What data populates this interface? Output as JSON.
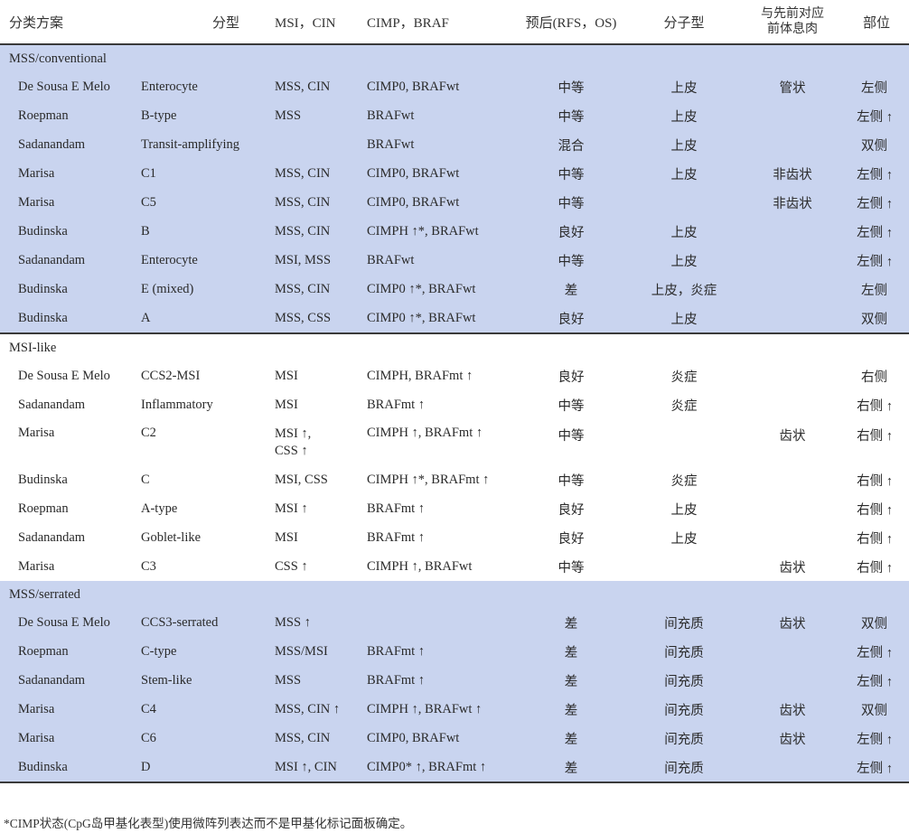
{
  "table": {
    "headers": {
      "scheme": "分类方案",
      "subtype": "分型",
      "msi_cin": "MSI，CIN",
      "cimp_braf": "CIMP，BRAF",
      "prognosis": "预后(RFS，OS)",
      "molecular": "分子型",
      "polyp_line1": "与先前对应",
      "polyp_line2": "前体息肉",
      "location": "部位"
    },
    "groups": [
      {
        "label": "MSS/conventional",
        "background": "#c9d4ef",
        "rows": [
          {
            "scheme": "De Sousa E Melo",
            "subtype": "Enterocyte",
            "msi_cin": "MSS, CIN",
            "msi_cin_2": "",
            "cimp_braf": "CIMP0, BRAFwt",
            "prognosis": "中等",
            "molecular": "上皮",
            "polyp": "管状",
            "location": "左侧"
          },
          {
            "scheme": "Roepman",
            "subtype": "B-type",
            "msi_cin": "MSS",
            "msi_cin_2": "",
            "cimp_braf": "BRAFwt",
            "prognosis": "中等",
            "molecular": "上皮",
            "polyp": "",
            "location": "左侧 ↑"
          },
          {
            "scheme": "Sadanandam",
            "subtype": "Transit-amplifying",
            "msi_cin": "",
            "msi_cin_2": "",
            "cimp_braf": "BRAFwt",
            "prognosis": "混合",
            "molecular": "上皮",
            "polyp": "",
            "location": "双侧"
          },
          {
            "scheme": "Marisa",
            "subtype": "C1",
            "msi_cin": "MSS, CIN",
            "msi_cin_2": "",
            "cimp_braf": "CIMP0, BRAFwt",
            "prognosis": "中等",
            "molecular": "上皮",
            "polyp": "非齿状",
            "location": "左侧 ↑"
          },
          {
            "scheme": "Marisa",
            "subtype": "C5",
            "msi_cin": "MSS, CIN",
            "msi_cin_2": "",
            "cimp_braf": "CIMP0, BRAFwt",
            "prognosis": "中等",
            "molecular": "",
            "polyp": "非齿状",
            "location": "左侧 ↑"
          },
          {
            "scheme": "Budinska",
            "subtype": "B",
            "msi_cin": "MSS, CIN",
            "msi_cin_2": "",
            "cimp_braf": "CIMPH ↑*, BRAFwt",
            "prognosis": "良好",
            "molecular": "上皮",
            "polyp": "",
            "location": "左侧 ↑"
          },
          {
            "scheme": "Sadanandam",
            "subtype": "Enterocyte",
            "msi_cin": "MSI, MSS",
            "msi_cin_2": "",
            "cimp_braf": "BRAFwt",
            "prognosis": "中等",
            "molecular": "上皮",
            "polyp": "",
            "location": "左侧 ↑"
          },
          {
            "scheme": "Budinska",
            "subtype": "E (mixed)",
            "msi_cin": "MSS, CIN",
            "msi_cin_2": "",
            "cimp_braf": "CIMP0 ↑*, BRAFwt",
            "prognosis": "差",
            "molecular": "上皮，炎症",
            "polyp": "",
            "location": "左侧"
          },
          {
            "scheme": "Budinska",
            "subtype": "A",
            "msi_cin": "MSS, CSS",
            "msi_cin_2": "",
            "cimp_braf": "CIMP0 ↑*, BRAFwt",
            "prognosis": "良好",
            "molecular": "上皮",
            "polyp": "",
            "location": "双侧"
          }
        ]
      },
      {
        "label": "MSI-like",
        "background": "#ffffff",
        "rows": [
          {
            "scheme": "De Sousa E Melo",
            "subtype": "CCS2-MSI",
            "msi_cin": "MSI",
            "msi_cin_2": "",
            "cimp_braf": "CIMPH, BRAFmt ↑",
            "prognosis": "良好",
            "molecular": "炎症",
            "polyp": "",
            "location": "右侧"
          },
          {
            "scheme": "Sadanandam",
            "subtype": "Inflammatory",
            "msi_cin": "MSI",
            "msi_cin_2": "",
            "cimp_braf": "BRAFmt ↑",
            "prognosis": "中等",
            "molecular": "炎症",
            "polyp": "",
            "location": "右侧 ↑"
          },
          {
            "scheme": "Marisa",
            "subtype": "C2",
            "msi_cin": "MSI ↑,",
            "msi_cin_2": "CSS ↑",
            "cimp_braf": "CIMPH ↑, BRAFmt ↑",
            "prognosis": "中等",
            "molecular": "",
            "polyp": "齿状",
            "location": "右侧 ↑"
          },
          {
            "scheme": "Budinska",
            "subtype": "C",
            "msi_cin": "MSI, CSS",
            "msi_cin_2": "",
            "cimp_braf": "CIMPH ↑*, BRAFmt ↑",
            "prognosis": "中等",
            "molecular": "炎症",
            "polyp": "",
            "location": "右侧 ↑"
          },
          {
            "scheme": "Roepman",
            "subtype": "A-type",
            "msi_cin": "MSI ↑",
            "msi_cin_2": "",
            "cimp_braf": "BRAFmt ↑",
            "prognosis": "良好",
            "molecular": "上皮",
            "polyp": "",
            "location": "右侧 ↑"
          },
          {
            "scheme": "Sadanandam",
            "subtype": "Goblet-like",
            "msi_cin": "MSI",
            "msi_cin_2": "",
            "cimp_braf": "BRAFmt ↑",
            "prognosis": "良好",
            "molecular": "上皮",
            "polyp": "",
            "location": "右侧 ↑"
          },
          {
            "scheme": "Marisa",
            "subtype": "C3",
            "msi_cin": "CSS ↑",
            "msi_cin_2": "",
            "cimp_braf": "CIMPH ↑, BRAFwt",
            "prognosis": "中等",
            "molecular": "",
            "polyp": "齿状",
            "location": "右侧 ↑"
          }
        ]
      },
      {
        "label": "MSS/serrated",
        "background": "#c9d4ef",
        "rows": [
          {
            "scheme": "De Sousa E Melo",
            "subtype": "CCS3-serrated",
            "msi_cin": "MSS ↑",
            "msi_cin_2": "",
            "cimp_braf": "",
            "prognosis": "差",
            "molecular": "间充质",
            "polyp": "齿状",
            "location": "双侧"
          },
          {
            "scheme": "Roepman",
            "subtype": "C-type",
            "msi_cin": "MSS/MSI",
            "msi_cin_2": "",
            "cimp_braf": "BRAFmt ↑",
            "prognosis": "差",
            "molecular": "间充质",
            "polyp": "",
            "location": "左侧 ↑"
          },
          {
            "scheme": "Sadanandam",
            "subtype": "Stem-like",
            "msi_cin": "MSS",
            "msi_cin_2": "",
            "cimp_braf": "BRAFmt ↑",
            "prognosis": "差",
            "molecular": "间充质",
            "polyp": "",
            "location": "左侧 ↑"
          },
          {
            "scheme": "Marisa",
            "subtype": "C4",
            "msi_cin": "MSS, CIN ↑",
            "msi_cin_2": "",
            "cimp_braf": "CIMPH ↑, BRAFwt ↑",
            "prognosis": "差",
            "molecular": "间充质",
            "polyp": "齿状",
            "location": "双侧"
          },
          {
            "scheme": "Marisa",
            "subtype": "C6",
            "msi_cin": "MSS, CIN",
            "msi_cin_2": "",
            "cimp_braf": "CIMP0, BRAFwt",
            "prognosis": "差",
            "molecular": "间充质",
            "polyp": "齿状",
            "location": "左侧 ↑"
          },
          {
            "scheme": "Budinska",
            "subtype": "D",
            "msi_cin": "MSI ↑, CIN",
            "msi_cin_2": "",
            "cimp_braf": "CIMP0* ↑, BRAFmt ↑",
            "prognosis": "差",
            "molecular": "间充质",
            "polyp": "",
            "location": "左侧 ↑"
          }
        ]
      }
    ]
  },
  "footnote": "*CIMP状态(CpG岛甲基化表型)使用微阵列表达而不是甲基化标记面板确定。",
  "colors": {
    "band_blue": "#c9d4ef",
    "rule": "#3a3a3a",
    "text": "#2a2a2a"
  }
}
